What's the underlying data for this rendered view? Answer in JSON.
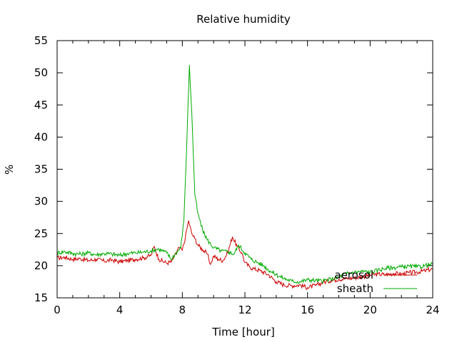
{
  "chart_data": {
    "type": "line",
    "title": "Relative humidity",
    "xlabel": "Time [hour]",
    "ylabel": "%",
    "xlim": [
      0,
      24
    ],
    "ylim": [
      15,
      55
    ],
    "xticks": [
      "0",
      "4",
      "8",
      "12",
      "16",
      "20",
      "24"
    ],
    "xtick_values": [
      0,
      4,
      8,
      12,
      16,
      20,
      24
    ],
    "yticks": [
      "15",
      "20",
      "25",
      "30",
      "35",
      "40",
      "45",
      "50",
      "55"
    ],
    "ytick_values": [
      15,
      20,
      25,
      30,
      35,
      40,
      45,
      50,
      55
    ],
    "grid": false,
    "legend_position": "bottom-right",
    "series": [
      {
        "name": "aerosol",
        "color": "#cc0000",
        "x": [
          0,
          0.5,
          1,
          1.5,
          2,
          2.5,
          3,
          3.5,
          4,
          4.5,
          5,
          5.5,
          6,
          6.2,
          6.5,
          7,
          7.3,
          7.5,
          7.8,
          8,
          8.2,
          8.4,
          8.6,
          8.8,
          9,
          9.3,
          9.6,
          9.8,
          10,
          10.3,
          10.6,
          10.9,
          11.2,
          11.5,
          11.8,
          12,
          12.3,
          12.6,
          13,
          13.5,
          14,
          14.5,
          15,
          15.5,
          16,
          16.5,
          17,
          17.5,
          18,
          18.5,
          19,
          19.5,
          20,
          20.5,
          21,
          21.5,
          22,
          22.5,
          23,
          23.5,
          24
        ],
        "y": [
          21.2,
          21.3,
          21.0,
          21.1,
          20.8,
          21.0,
          20.7,
          20.9,
          20.6,
          20.8,
          21.0,
          21.2,
          21.6,
          23.0,
          21.0,
          20.4,
          20.6,
          21.5,
          22.8,
          22.4,
          24.5,
          27.0,
          25.0,
          24.2,
          23.2,
          22.5,
          21.8,
          20.2,
          21.5,
          21.0,
          20.8,
          22.0,
          24.5,
          23.0,
          22.0,
          20.5,
          19.8,
          19.5,
          19.2,
          18.6,
          17.5,
          17.0,
          16.9,
          17.0,
          16.6,
          16.9,
          17.4,
          17.7,
          17.9,
          18.0,
          18.1,
          18.3,
          18.5,
          18.7,
          18.6,
          18.8,
          18.7,
          18.9,
          19.0,
          19.2,
          19.5
        ]
      },
      {
        "name": "sheath",
        "color": "#00aa00",
        "x": [
          0,
          0.5,
          1,
          1.5,
          2,
          2.5,
          3,
          3.5,
          4,
          4.5,
          5,
          5.5,
          6,
          6.5,
          7,
          7.3,
          7.6,
          7.9,
          8.1,
          8.3,
          8.45,
          8.6,
          8.8,
          9,
          9.3,
          9.6,
          10,
          10.5,
          11,
          11.3,
          11.6,
          12,
          12.4,
          12.8,
          13.2,
          13.6,
          14,
          14.5,
          15,
          15.5,
          16,
          16.5,
          17,
          17.5,
          18,
          18.5,
          19,
          19.5,
          20,
          20.5,
          21,
          21.5,
          22,
          22.5,
          23,
          23.5,
          24
        ],
        "y": [
          22.0,
          22.2,
          21.9,
          21.8,
          22.0,
          21.7,
          21.9,
          21.8,
          21.6,
          21.9,
          22.0,
          22.1,
          22.3,
          22.6,
          22.0,
          21.0,
          22.0,
          22.8,
          27.0,
          40.0,
          51.2,
          44.0,
          31.0,
          28.0,
          25.5,
          24.0,
          22.8,
          22.3,
          22.1,
          21.8,
          23.2,
          22.0,
          21.0,
          20.5,
          20.0,
          19.2,
          18.6,
          18.0,
          17.6,
          17.5,
          17.8,
          17.7,
          17.6,
          17.9,
          18.2,
          18.8,
          19.0,
          19.1,
          19.0,
          19.3,
          19.6,
          19.7,
          19.8,
          19.9,
          19.8,
          20.0,
          20.2
        ]
      }
    ]
  }
}
